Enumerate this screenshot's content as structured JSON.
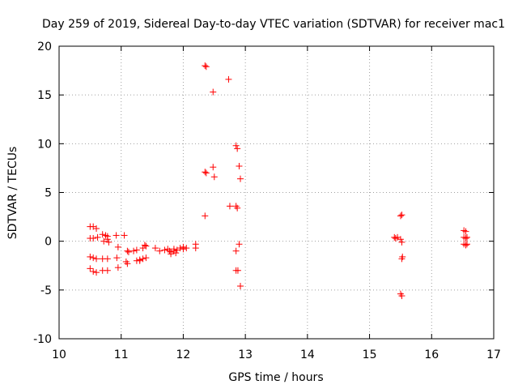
{
  "chart_data": {
    "type": "scatter",
    "title": "Day 259 of 2019, Sidereal Day-to-day VTEC variation (SDTVAR) for receiver mac1",
    "xlabel": "GPS time / hours",
    "ylabel": "SDTVAR / TECUs",
    "xlim": [
      10,
      17
    ],
    "ylim": [
      -10,
      20
    ],
    "xticks": [
      10,
      11,
      12,
      13,
      14,
      15,
      16,
      17
    ],
    "yticks": [
      -10,
      -5,
      0,
      5,
      10,
      15,
      20
    ],
    "xtick_labels": [
      "10",
      "11",
      "12",
      "13",
      "14",
      "15",
      "16",
      "17"
    ],
    "ytick_labels": [
      "-10",
      "-5",
      "0",
      "5",
      "10",
      "15",
      "20"
    ],
    "grid": true,
    "marker": "+",
    "color": "#ff0000",
    "series": [
      {
        "name": "SDTVAR",
        "x": [
          10.5,
          10.55,
          10.6,
          10.5,
          10.55,
          10.62,
          10.5,
          10.55,
          10.6,
          10.5,
          10.55,
          10.6,
          10.7,
          10.75,
          10.78,
          10.72,
          10.78,
          10.8,
          10.7,
          10.78,
          10.7,
          10.78,
          10.92,
          10.95,
          10.93,
          10.95,
          11.05,
          11.1,
          11.08,
          11.12,
          11.1,
          11.2,
          11.25,
          11.3,
          11.35,
          11.38,
          11.4,
          11.3,
          11.35,
          11.4,
          11.25,
          11.55,
          11.62,
          11.7,
          11.75,
          11.78,
          11.8,
          11.85,
          11.88,
          11.9,
          11.8,
          11.85,
          11.95,
          12.0,
          12.05,
          12.0,
          12.2,
          12.2,
          12.35,
          12.37,
          12.35,
          12.37,
          12.35,
          12.48,
          12.48,
          12.5,
          12.73,
          12.75,
          12.85,
          12.87,
          12.85,
          12.87,
          12.9,
          12.92,
          12.9,
          12.85,
          12.85,
          12.88,
          12.92,
          15.4,
          15.42,
          15.45,
          15.5,
          15.52,
          15.5,
          15.52,
          15.53,
          15.52,
          15.5,
          15.52,
          16.52,
          16.55,
          16.57,
          16.52,
          16.55,
          16.52,
          16.57,
          16.55
        ],
        "y": [
          1.5,
          1.5,
          1.3,
          0.3,
          0.3,
          0.4,
          -1.6,
          -1.7,
          -1.8,
          -2.8,
          -3.1,
          -3.2,
          0.7,
          0.6,
          0.5,
          0.0,
          0.2,
          -0.1,
          -1.8,
          -1.8,
          -3.0,
          -3.0,
          0.6,
          -0.6,
          -1.7,
          -2.7,
          0.6,
          -1.0,
          -2.1,
          -1.1,
          -2.3,
          -1.0,
          -0.9,
          -2.0,
          -0.7,
          -0.4,
          -0.5,
          -1.9,
          -1.8,
          -1.7,
          -2.0,
          -0.7,
          -1.0,
          -0.9,
          -0.8,
          -1.0,
          -1.1,
          -0.8,
          -1.2,
          -0.9,
          -1.3,
          -1.0,
          -0.7,
          -0.6,
          -0.7,
          -0.8,
          -0.3,
          -0.7,
          18.0,
          17.9,
          7.1,
          7.0,
          2.6,
          15.3,
          7.6,
          6.6,
          16.6,
          3.6,
          9.8,
          9.5,
          3.6,
          3.4,
          7.7,
          6.4,
          -0.3,
          -1.0,
          -3.0,
          -3.0,
          -4.6,
          0.4,
          0.3,
          0.4,
          0.2,
          2.7,
          2.6,
          -0.1,
          -1.6,
          -1.8,
          -5.4,
          -5.6,
          1.1,
          1.0,
          0.4,
          0.4,
          0.3,
          -0.3,
          -0.3,
          -0.4
        ]
      }
    ]
  }
}
